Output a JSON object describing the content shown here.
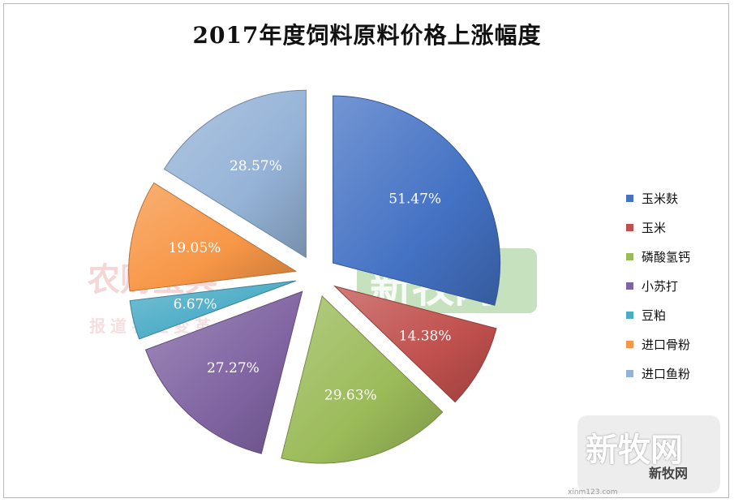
{
  "chart_data": {
    "type": "pie",
    "title": "2017年度饲料原料价格上涨幅度",
    "slices": [
      {
        "label": "玉米麸",
        "value": 51.47,
        "data_label": "51.47%",
        "color": "#4472C4"
      },
      {
        "label": "玉米",
        "value": 14.38,
        "data_label": "14.38%",
        "color": "#C0504D"
      },
      {
        "label": "磷酸氢钙",
        "value": 29.63,
        "data_label": "29.63%",
        "color": "#9BBB59"
      },
      {
        "label": "小苏打",
        "value": 27.27,
        "data_label": "27.27%",
        "color": "#8064A2"
      },
      {
        "label": "豆粕",
        "value": 6.67,
        "data_label": "6.67%",
        "color": "#4BACC6"
      },
      {
        "label": "进口骨粉",
        "value": 19.05,
        "data_label": "19.05%",
        "color": "#F79646"
      },
      {
        "label": "进口鱼粉",
        "value": 28.57,
        "data_label": "28.57%",
        "color": "#95B3D7"
      }
    ],
    "legend_position": "right",
    "exploded": true
  },
  "watermarks": {
    "nongjia": "农财宝典",
    "nongjia_sub": "报道农业变革",
    "xinmuwang": "新牧网",
    "badge": "新牧网",
    "badge_sub": "新牧网",
    "url": "xinm123.com"
  }
}
